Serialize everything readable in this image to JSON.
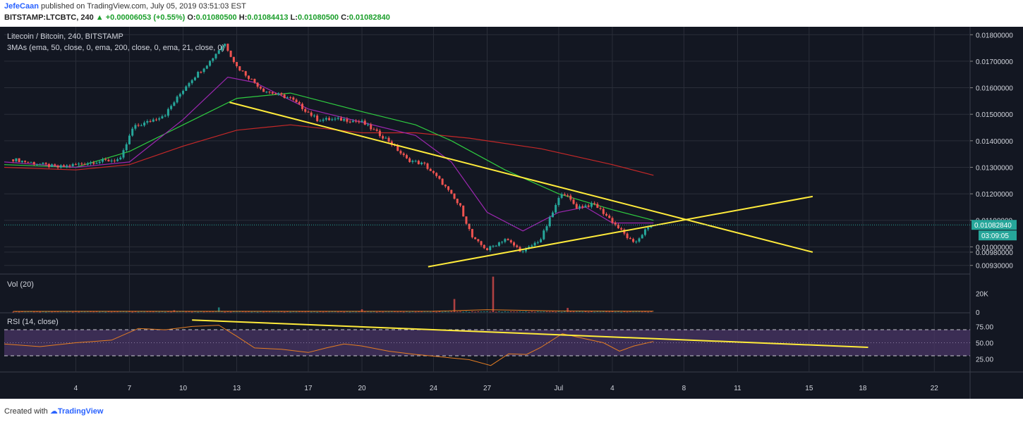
{
  "header": {
    "author": "JefeCaan",
    "published_text": "published on TradingView.com, July 05, 2019 03:51:03 EST",
    "symbol": "BITSTAMP:LTCBTC, 240",
    "change": "▲ +0.00006053 (+0.55%)",
    "o_label": "O:",
    "o_value": "0.01080500",
    "h_label": "H:",
    "h_value": "0.01084413",
    "l_label": "L:",
    "l_value": "0.01080500",
    "c_label": "C:",
    "c_value": "0.01082840"
  },
  "footer": {
    "created_with": "Created with",
    "brand": "TradingView"
  },
  "colors": {
    "background": "#131722",
    "up": "#26a69a",
    "down": "#ef5350",
    "ema50": "#9c27b0",
    "ema200": "#2ecc40",
    "ema21": "#c62828",
    "trendline": "#ffeb3b",
    "rsi_line": "#e67e22",
    "rsi_band": "#4a3566",
    "price_label": "#26a69a",
    "grid": "#2a2e39",
    "volume_ma": "#e67e22"
  },
  "chart_data": [
    {
      "type": "candlestick",
      "title": "Litecoin / Bitcoin, 240, BITSTAMP",
      "indicator_label": "3MAs (ema, 50, close, 0, ema, 200, close, 0, ema, 21, close, 0)",
      "x_ticks": [
        "4",
        "7",
        "10",
        "13",
        "17",
        "20",
        "24",
        "27",
        "Jul",
        "4",
        "8",
        "11",
        "15",
        "18",
        "22"
      ],
      "x_days": [
        4,
        7,
        10,
        13,
        17,
        20,
        24,
        27,
        31,
        34,
        38,
        41,
        45,
        48,
        52
      ],
      "x_range_days": [
        0,
        54
      ],
      "y_ticks": [
        "0.01800000",
        "0.01700000",
        "0.01600000",
        "0.01500000",
        "0.01400000",
        "0.01300000",
        "0.01200000",
        "0.01100000",
        "0.01000000",
        "0.00980000",
        "0.00930000"
      ],
      "ylim": [
        0.009,
        0.0183
      ],
      "last_price_label": "0.01082840",
      "last_price": 0.0108284,
      "countdown_label": "03:09:05",
      "price_path": [
        [
          0.5,
          0.0133
        ],
        [
          3,
          0.013
        ],
        [
          5,
          0.0132
        ],
        [
          6.5,
          0.0133
        ],
        [
          7.2,
          0.0145
        ],
        [
          8,
          0.0147
        ],
        [
          9,
          0.015
        ],
        [
          10.3,
          0.0162
        ],
        [
          11.5,
          0.017
        ],
        [
          12.3,
          0.0177
        ],
        [
          13,
          0.0168
        ],
        [
          14.5,
          0.0159
        ],
        [
          16,
          0.0156
        ],
        [
          17.5,
          0.0148
        ],
        [
          19,
          0.0148
        ],
        [
          20,
          0.0147
        ],
        [
          21.5,
          0.014
        ],
        [
          22.5,
          0.0133
        ],
        [
          23.5,
          0.0131
        ],
        [
          24.5,
          0.0124
        ],
        [
          25.5,
          0.0115
        ],
        [
          26.2,
          0.0103
        ],
        [
          27,
          0.0099
        ],
        [
          28,
          0.0103
        ],
        [
          29,
          0.0098
        ],
        [
          30,
          0.0103
        ],
        [
          30.6,
          0.0112
        ],
        [
          31.2,
          0.0121
        ],
        [
          32,
          0.0115
        ],
        [
          33,
          0.0116
        ],
        [
          33.8,
          0.0111
        ],
        [
          34.5,
          0.0106
        ],
        [
          35.2,
          0.0101
        ],
        [
          35.8,
          0.0106
        ],
        [
          36.3,
          0.01083
        ]
      ],
      "ema50": [
        [
          0,
          0.0132
        ],
        [
          4,
          0.013
        ],
        [
          7,
          0.0132
        ],
        [
          10,
          0.0148
        ],
        [
          12.5,
          0.0164
        ],
        [
          14,
          0.0162
        ],
        [
          17,
          0.0152
        ],
        [
          20,
          0.0147
        ],
        [
          23,
          0.0142
        ],
        [
          25,
          0.0132
        ],
        [
          27,
          0.0113
        ],
        [
          29,
          0.0106
        ],
        [
          31,
          0.0113
        ],
        [
          32.5,
          0.0115
        ],
        [
          34,
          0.0109
        ],
        [
          36.3,
          0.0109
        ]
      ],
      "ema200": [
        [
          0,
          0.0131
        ],
        [
          4,
          0.013
        ],
        [
          7,
          0.0136
        ],
        [
          10,
          0.0146
        ],
        [
          13,
          0.0156
        ],
        [
          16,
          0.0158
        ],
        [
          20,
          0.0151
        ],
        [
          23,
          0.0146
        ],
        [
          25,
          0.014
        ],
        [
          28,
          0.0129
        ],
        [
          31,
          0.012
        ],
        [
          34,
          0.0114
        ],
        [
          36.3,
          0.011
        ]
      ],
      "ema21": [
        [
          0,
          0.013
        ],
        [
          4,
          0.0129
        ],
        [
          7,
          0.0131
        ],
        [
          10,
          0.0138
        ],
        [
          13,
          0.0144
        ],
        [
          16,
          0.0146
        ],
        [
          20,
          0.0143
        ],
        [
          23,
          0.0143
        ],
        [
          26,
          0.0141
        ],
        [
          30,
          0.0137
        ],
        [
          34,
          0.0131
        ],
        [
          36.3,
          0.0127
        ]
      ],
      "trendlines": [
        {
          "from": [
            12.6,
            0.01545
          ],
          "to": [
            45.2,
            0.0098
          ]
        },
        {
          "from": [
            23.7,
            0.00925
          ],
          "to": [
            45.2,
            0.0119
          ]
        }
      ]
    },
    {
      "type": "bar",
      "title": "Vol (20)",
      "y_ticks": [
        "20K",
        "0"
      ],
      "ylim": [
        0,
        40000
      ],
      "spikes": [
        [
          27.4,
          38000
        ],
        [
          25.2,
          14000
        ],
        [
          31.5,
          4500
        ],
        [
          12,
          5000
        ],
        [
          9.5,
          2000
        ],
        [
          20,
          3000
        ]
      ],
      "baseline": 600
    },
    {
      "type": "line",
      "title": "RSI (14, close)",
      "y_ticks": [
        "75.00",
        "50.00",
        "25.00"
      ],
      "ylim": [
        5,
        95
      ],
      "bands": [
        30,
        70
      ],
      "rsi": [
        [
          0,
          48
        ],
        [
          2,
          44
        ],
        [
          4,
          50
        ],
        [
          6,
          54
        ],
        [
          7.5,
          72
        ],
        [
          9,
          70
        ],
        [
          10.5,
          75
        ],
        [
          12,
          77
        ],
        [
          13,
          60
        ],
        [
          14,
          42
        ],
        [
          15.5,
          40
        ],
        [
          17,
          35
        ],
        [
          18,
          42
        ],
        [
          19,
          48
        ],
        [
          20,
          45
        ],
        [
          21.5,
          37
        ],
        [
          23,
          32
        ],
        [
          24.5,
          28
        ],
        [
          26,
          24
        ],
        [
          27.2,
          15
        ],
        [
          28.2,
          33
        ],
        [
          29.2,
          32
        ],
        [
          30,
          43
        ],
        [
          31.2,
          64
        ],
        [
          32.5,
          56
        ],
        [
          33.5,
          50
        ],
        [
          34.4,
          37
        ],
        [
          35.2,
          45
        ],
        [
          36.3,
          52
        ]
      ],
      "trendline": {
        "from": [
          10.5,
          85
        ],
        "to": [
          48.3,
          43
        ]
      }
    }
  ]
}
